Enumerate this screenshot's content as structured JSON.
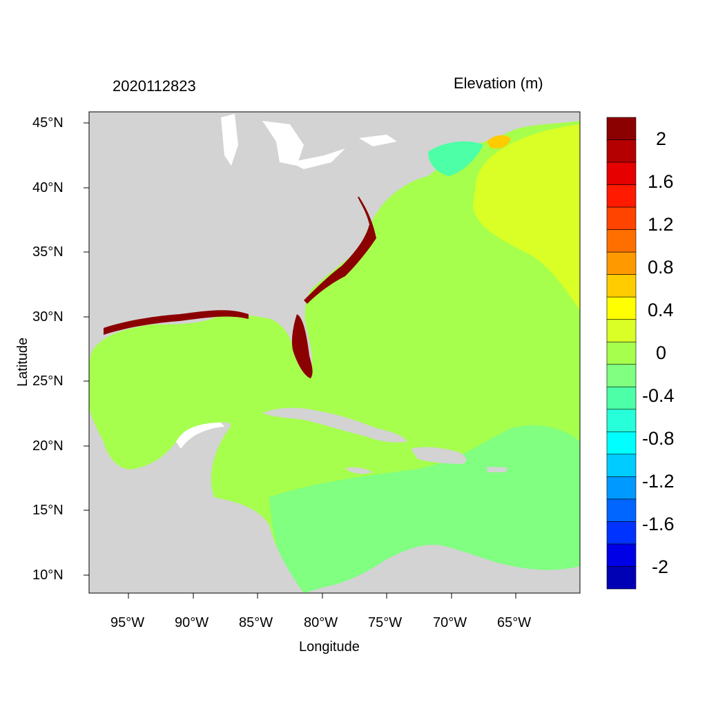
{
  "title_left": "2020112823",
  "title_right": "Elevation (m)",
  "x_axis_label": "Longitude",
  "y_axis_label": "Latitude",
  "lon_ticks": [
    "95°W",
    "90°W",
    "85°W",
    "80°W",
    "75°W",
    "70°W",
    "65°W"
  ],
  "lat_ticks": [
    "45°N",
    "40°N",
    "35°N",
    "30°N",
    "25°N",
    "20°N",
    "15°N",
    "10°N"
  ],
  "colorbar": {
    "labels": [
      "2",
      "1.6",
      "1.2",
      "0.8",
      "0.4",
      "0",
      "-0.4",
      "-0.8",
      "-1.2",
      "-1.6",
      "-2"
    ],
    "colors_top_to_bottom": [
      "#8b0000",
      "#b40000",
      "#e60000",
      "#ff1a00",
      "#ff4400",
      "#ff6f00",
      "#ff9900",
      "#ffcc00",
      "#ffff00",
      "#d9ff26",
      "#a6ff4d",
      "#80ff80",
      "#4dffa6",
      "#26ffd9",
      "#00ffff",
      "#00ccff",
      "#0099ff",
      "#0066ff",
      "#0033ff",
      "#0000e6",
      "#0000b4"
    ]
  },
  "colors": {
    "land": "#d3d3d3",
    "water_base": "#a6ff4d",
    "caribbean": "#80ff80",
    "atlantic_high": "#d9ff26",
    "florida": "#8b0000"
  }
}
